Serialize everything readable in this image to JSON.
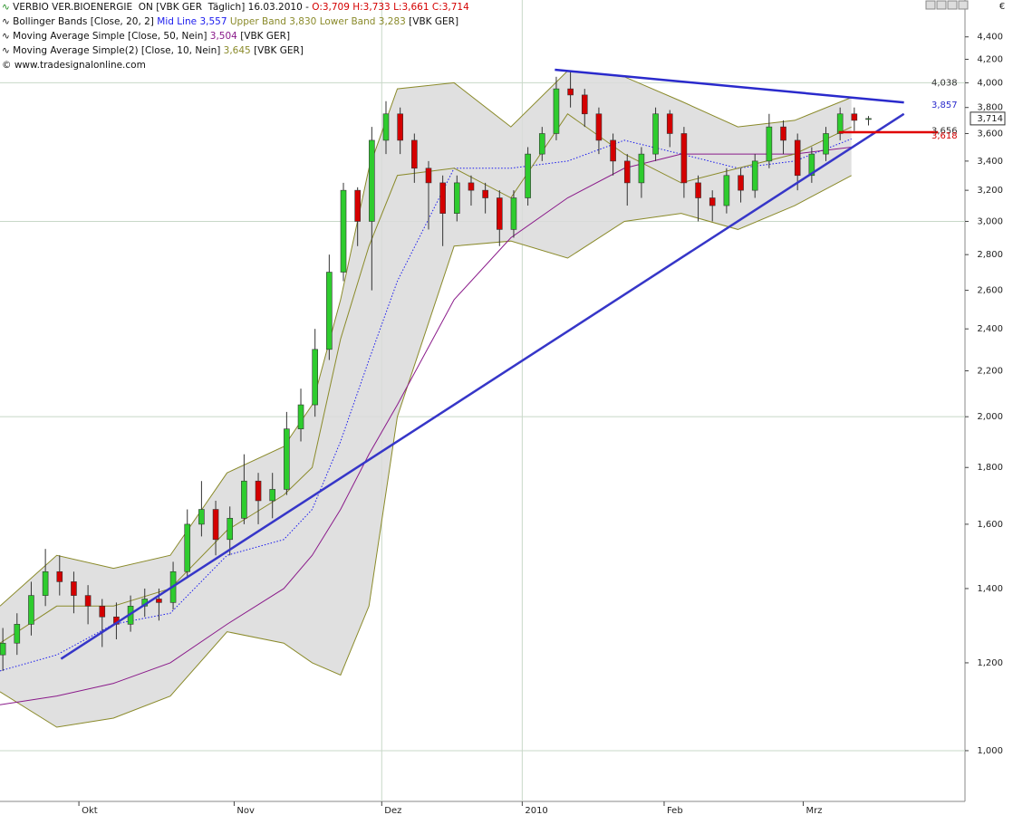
{
  "header": {
    "line1": {
      "text": "VERBIO VER.BIOENERGIE  ON [VBK GER  Täglich] 16.03.2010 - ",
      "ohlc": "O:3,709 H:3,733 L:3,661 C:3,714"
    },
    "line2": {
      "text": "Bollinger Bands [Close, 20, 2]",
      "mid": " Mid Line 3,557",
      "bands": " Upper Band 3,830 Lower Band 3,283",
      "tail": " [VBK GER]"
    },
    "line3": {
      "text": "Moving Average Simple [Close, 50, Nein]",
      "value": " 3,504",
      "tail": " [VBK GER]"
    },
    "line4": {
      "text": "Moving Average Simple(2) [Close, 10, Nein]",
      "value": " 3,645",
      "tail": " [VBK GER]"
    },
    "line5": "www.tradesignalonline.com",
    "currency": "€"
  },
  "chart_data": {
    "type": "candlestick",
    "log_scale": true,
    "ylim": [
      0.9,
      4.75
    ],
    "xlim": [
      0,
      68
    ],
    "yticks": [
      {
        "value": 1.0,
        "label": "1,000"
      },
      {
        "value": 1.2,
        "label": "1,200"
      },
      {
        "value": 1.4,
        "label": "1,400"
      },
      {
        "value": 1.6,
        "label": "1,600"
      },
      {
        "value": 1.8,
        "label": "1,800"
      },
      {
        "value": 2.0,
        "label": "2,000"
      },
      {
        "value": 2.2,
        "label": "2,200"
      },
      {
        "value": 2.4,
        "label": "2,400"
      },
      {
        "value": 2.6,
        "label": "2,600"
      },
      {
        "value": 2.8,
        "label": "2,800"
      },
      {
        "value": 3.0,
        "label": "3,000"
      },
      {
        "value": 3.2,
        "label": "3,200"
      },
      {
        "value": 3.4,
        "label": "3,400"
      },
      {
        "value": 3.6,
        "label": "3,600"
      },
      {
        "value": 3.8,
        "label": "3,800"
      },
      {
        "value": 4.0,
        "label": "4,000"
      },
      {
        "value": 4.2,
        "label": "4,200"
      },
      {
        "value": 4.4,
        "label": "4,400"
      }
    ],
    "grid_values": [
      1,
      2,
      3,
      4
    ],
    "xticks": [
      {
        "value": 5.56,
        "label": "Okt"
      },
      {
        "value": 16.5,
        "label": "Nov"
      },
      {
        "value": 26.9,
        "label": "Dez"
      },
      {
        "value": 36.8,
        "label": "2010"
      },
      {
        "value": 46.8,
        "label": "Feb"
      },
      {
        "value": 56.6,
        "label": "Mrz"
      }
    ],
    "x_grid": [
      26.9,
      36.8
    ],
    "open": [
      1.22,
      1.25,
      1.3,
      1.38,
      1.45,
      1.42,
      1.38,
      1.35,
      1.32,
      1.3,
      1.35,
      1.37,
      1.36,
      1.45,
      1.6,
      1.65,
      1.55,
      1.62,
      1.75,
      1.68,
      1.72,
      1.95,
      2.05,
      2.3,
      2.7,
      3.2,
      3.0,
      3.55,
      3.75,
      3.55,
      3.35,
      3.25,
      3.05,
      3.25,
      3.2,
      3.15,
      2.95,
      3.15,
      3.45,
      3.6,
      3.95,
      3.9,
      3.75,
      3.55,
      3.4,
      3.25,
      3.45,
      3.75,
      3.6,
      3.25,
      3.15,
      3.1,
      3.3,
      3.2,
      3.4,
      3.65,
      3.55,
      3.3,
      3.45,
      3.6,
      3.75,
      3.709
    ],
    "high": [
      1.29,
      1.33,
      1.42,
      1.52,
      1.5,
      1.45,
      1.41,
      1.37,
      1.36,
      1.38,
      1.4,
      1.4,
      1.48,
      1.65,
      1.75,
      1.68,
      1.66,
      1.85,
      1.78,
      1.78,
      2.02,
      2.12,
      2.4,
      2.8,
      3.25,
      3.22,
      3.65,
      3.85,
      3.8,
      3.6,
      3.4,
      3.3,
      3.3,
      3.3,
      3.25,
      3.2,
      3.2,
      3.5,
      3.65,
      4.05,
      4.1,
      3.95,
      3.8,
      3.6,
      3.45,
      3.5,
      3.8,
      3.78,
      3.65,
      3.3,
      3.2,
      3.35,
      3.35,
      3.45,
      3.75,
      3.7,
      3.6,
      3.5,
      3.65,
      3.8,
      3.8,
      3.733
    ],
    "low": [
      1.18,
      1.22,
      1.27,
      1.35,
      1.38,
      1.33,
      1.3,
      1.24,
      1.26,
      1.28,
      1.32,
      1.31,
      1.34,
      1.43,
      1.56,
      1.5,
      1.5,
      1.6,
      1.6,
      1.62,
      1.7,
      1.9,
      2.0,
      2.25,
      2.65,
      2.85,
      2.6,
      3.45,
      3.45,
      3.25,
      2.95,
      2.85,
      3.0,
      3.1,
      3.05,
      2.85,
      2.9,
      3.1,
      3.4,
      3.55,
      3.8,
      3.65,
      3.45,
      3.3,
      3.1,
      3.15,
      3.4,
      3.5,
      3.15,
      3.0,
      3.0,
      3.05,
      3.12,
      3.15,
      3.35,
      3.45,
      3.2,
      3.25,
      3.4,
      3.55,
      3.62,
      3.661
    ],
    "close": [
      1.25,
      1.3,
      1.38,
      1.45,
      1.42,
      1.38,
      1.35,
      1.32,
      1.3,
      1.35,
      1.37,
      1.36,
      1.45,
      1.6,
      1.65,
      1.55,
      1.62,
      1.75,
      1.68,
      1.72,
      1.95,
      2.05,
      2.3,
      2.7,
      3.2,
      3.0,
      3.55,
      3.75,
      3.55,
      3.35,
      3.25,
      3.05,
      3.25,
      3.2,
      3.15,
      2.95,
      3.15,
      3.45,
      3.6,
      3.95,
      3.9,
      3.75,
      3.55,
      3.4,
      3.25,
      3.45,
      3.75,
      3.6,
      3.25,
      3.15,
      3.1,
      3.3,
      3.2,
      3.4,
      3.65,
      3.55,
      3.3,
      3.45,
      3.6,
      3.75,
      3.7,
      3.714
    ],
    "up_color": "#2ecc2e",
    "down_color": "#d40000",
    "overlay_x": [
      0,
      4,
      8,
      12,
      16,
      20,
      22,
      24,
      26,
      28,
      32,
      36,
      40,
      44,
      48,
      52,
      56,
      60
    ],
    "bands": {
      "color": "#8a8a2a",
      "fill": "#dadada",
      "upper": [
        1.35,
        1.5,
        1.46,
        1.5,
        1.78,
        1.88,
        2.05,
        2.55,
        3.35,
        3.95,
        4.0,
        3.65,
        4.1,
        4.05,
        3.85,
        3.65,
        3.7,
        3.88
      ],
      "lower": [
        1.13,
        1.05,
        1.07,
        1.12,
        1.28,
        1.25,
        1.2,
        1.17,
        1.35,
        2.0,
        2.85,
        2.88,
        2.78,
        3.0,
        3.05,
        2.95,
        3.1,
        3.3
      ]
    },
    "overlays": [
      {
        "color": "#1a1aee",
        "dash": true,
        "values": [
          1.18,
          1.22,
          1.3,
          1.33,
          1.5,
          1.55,
          1.65,
          1.9,
          2.25,
          2.65,
          3.35,
          3.35,
          3.4,
          3.55,
          3.45,
          3.35,
          3.4,
          3.56
        ]
      },
      {
        "color": "#8a1a8a",
        "dash": false,
        "values": [
          1.1,
          1.12,
          1.15,
          1.2,
          1.3,
          1.4,
          1.5,
          1.65,
          1.85,
          2.05,
          2.55,
          2.9,
          3.15,
          3.35,
          3.45,
          3.45,
          3.45,
          3.5
        ]
      },
      {
        "color": "#8a8a2a",
        "dash": false,
        "values": [
          1.25,
          1.35,
          1.35,
          1.4,
          1.58,
          1.7,
          1.8,
          2.35,
          2.85,
          3.3,
          3.35,
          3.15,
          3.75,
          3.45,
          3.25,
          3.35,
          3.45,
          3.65
        ]
      }
    ],
    "lines": [
      {
        "color": "#3636c8",
        "x": [
          4.3,
          63.7
        ],
        "values": [
          1.21,
          3.75
        ]
      },
      {
        "color": "#2a2acc",
        "x": [
          39.1,
          63.7
        ],
        "values": [
          4.11,
          3.84
        ]
      },
      {
        "color": "#e00000",
        "x": [
          59.1,
          66.1
        ],
        "values": [
          3.61,
          3.61
        ]
      }
    ],
    "last_labels": [
      {
        "value": 4.038,
        "label": "4,038",
        "color": "#333333"
      },
      {
        "value": 3.857,
        "label": "3,857",
        "color": "#2a2acc"
      },
      {
        "value": 3.656,
        "label": "3,656",
        "color": "#333333"
      },
      {
        "value": 3.618,
        "label": "3,618",
        "color": "#d40000"
      }
    ],
    "last_price": {
      "value": 3.714,
      "label": "3,714"
    }
  }
}
